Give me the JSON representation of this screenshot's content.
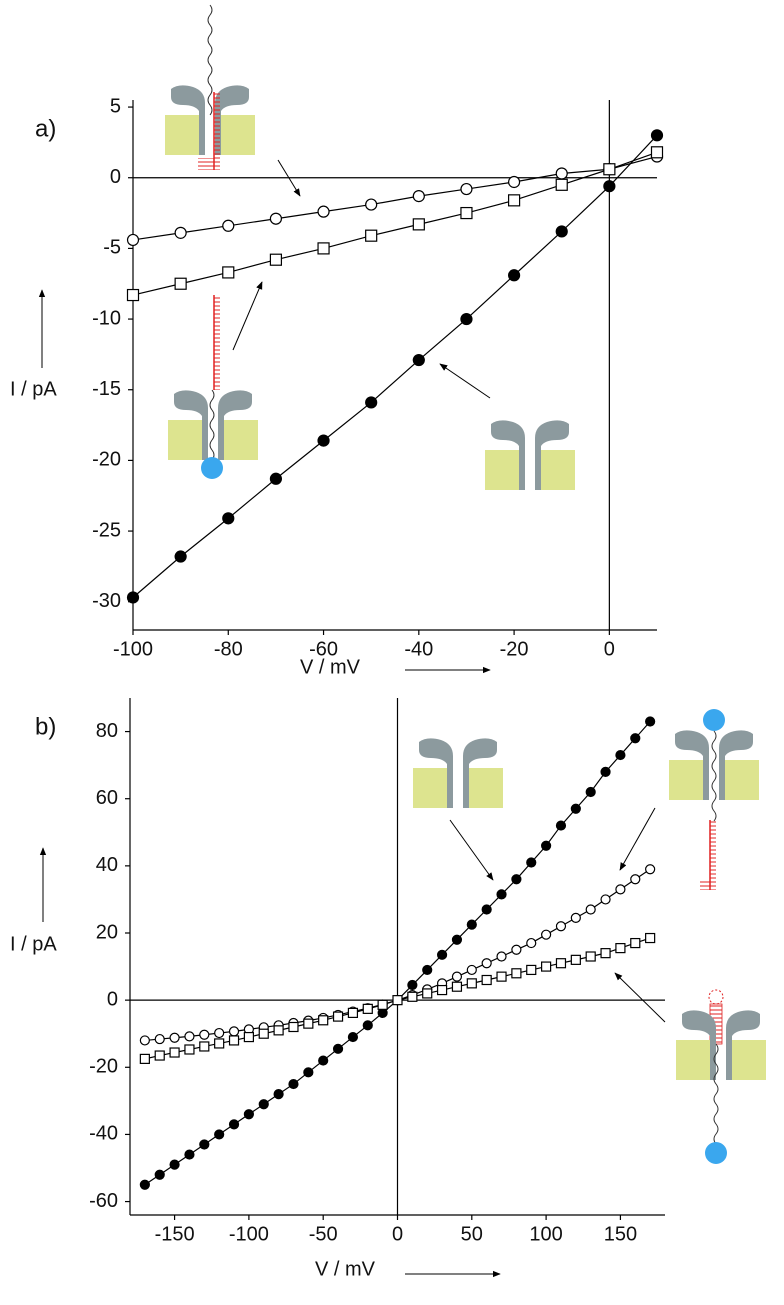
{
  "chart_data": [
    {
      "type": "line",
      "panel_label": "a)",
      "xlabel": "V / mV",
      "ylabel": "I / pA",
      "xlim": [
        -100,
        10
      ],
      "ylim": [
        -32,
        5.5
      ],
      "xticks": [
        -100,
        -80,
        -60,
        -40,
        -20,
        0
      ],
      "yticks": [
        -30,
        -25,
        -20,
        -15,
        -10,
        -5,
        0,
        5
      ],
      "zero_lines": true,
      "x": [
        -100,
        -90,
        -80,
        -70,
        -60,
        -50,
        -40,
        -30,
        -20,
        -10,
        0,
        10
      ],
      "series": [
        {
          "marker": "circle",
          "color": "#000000",
          "fill": "#000000",
          "values": [
            -29.7,
            -26.8,
            -24.1,
            -21.3,
            -18.6,
            -15.9,
            -12.9,
            -10.0,
            -6.9,
            -3.8,
            -0.6,
            3.0
          ]
        },
        {
          "marker": "circle",
          "color": "#000000",
          "fill": "#ffffff",
          "values": [
            -4.4,
            -3.9,
            -3.4,
            -2.9,
            -2.4,
            -1.9,
            -1.3,
            -0.8,
            -0.3,
            0.3,
            0.6,
            1.5
          ]
        },
        {
          "marker": "square",
          "color": "#000000",
          "fill": "#ffffff",
          "values": [
            -8.3,
            -7.5,
            -6.7,
            -5.8,
            -5.0,
            -4.1,
            -3.3,
            -2.5,
            -1.6,
            -0.5,
            0.6,
            1.8
          ]
        }
      ]
    },
    {
      "type": "line",
      "panel_label": "b)",
      "xlabel": "V / mV",
      "ylabel": "I / pA",
      "xlim": [
        -180,
        180
      ],
      "ylim": [
        -64,
        90
      ],
      "xticks": [
        -150,
        -100,
        -50,
        0,
        50,
        100,
        150
      ],
      "yticks": [
        -60,
        -40,
        -20,
        0,
        20,
        40,
        60,
        80
      ],
      "zero_lines": true,
      "x": [
        -170,
        -160,
        -150,
        -140,
        -130,
        -120,
        -110,
        -100,
        -90,
        -80,
        -70,
        -60,
        -50,
        -40,
        -30,
        -20,
        -10,
        0,
        10,
        20,
        30,
        40,
        50,
        60,
        70,
        80,
        90,
        100,
        110,
        120,
        130,
        140,
        150,
        160,
        170
      ],
      "series": [
        {
          "marker": "circle",
          "color": "#000000",
          "fill": "#000000",
          "values": [
            -55,
            -52,
            -49,
            -46,
            -43,
            -40,
            -37,
            -34,
            -31,
            -28,
            -25,
            -21.5,
            -18,
            -14.5,
            -11,
            -7.5,
            -3.8,
            0,
            4.5,
            9,
            13.5,
            18,
            22.5,
            27,
            31.5,
            36,
            41,
            46,
            52,
            57,
            62,
            68,
            73,
            78,
            83
          ]
        },
        {
          "marker": "circle",
          "color": "#000000",
          "fill": "#ffffff",
          "values": [
            -12,
            -11.6,
            -11.2,
            -10.8,
            -10.3,
            -9.8,
            -9.3,
            -8.7,
            -8.1,
            -7.5,
            -6.8,
            -6.1,
            -5.3,
            -4.4,
            -3.4,
            -2.4,
            -1.3,
            0,
            1.5,
            3.2,
            5,
            7,
            9,
            11,
            13,
            15,
            17,
            19.5,
            22,
            24.5,
            27,
            30,
            33,
            36,
            39
          ]
        },
        {
          "marker": "square",
          "color": "#000000",
          "fill": "#ffffff",
          "values": [
            -17.5,
            -16.5,
            -15.6,
            -14.7,
            -13.8,
            -12.9,
            -12,
            -11,
            -10,
            -9,
            -8,
            -7,
            -6,
            -4.9,
            -3.8,
            -2.6,
            -1.4,
            0,
            1,
            2,
            3,
            4,
            5,
            6,
            7,
            8,
            9,
            10,
            11,
            12,
            13,
            14,
            15.5,
            17,
            18.5
          ]
        }
      ]
    }
  ]
}
